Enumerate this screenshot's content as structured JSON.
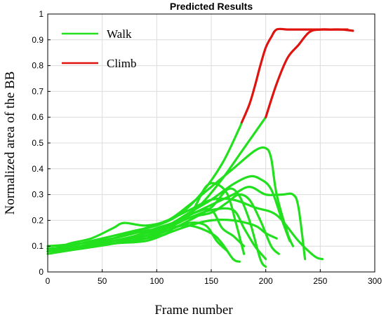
{
  "chart_data": {
    "type": "line",
    "title": "Predicted Results",
    "xlabel": "Frame number",
    "ylabel": "Normalized area of the BB",
    "xlim": [
      0,
      300
    ],
    "ylim": [
      0,
      1
    ],
    "xticks": [
      0,
      50,
      100,
      150,
      200,
      250,
      300
    ],
    "yticks": [
      0,
      0.1,
      0.2,
      0.3,
      0.4,
      0.5,
      0.6,
      0.7,
      0.8,
      0.9,
      1
    ],
    "grid": true,
    "legend_position": "top-left",
    "legend": [
      {
        "name": "Walk",
        "color": "#22e01e"
      },
      {
        "name": "Climb",
        "color": "#e0140f"
      }
    ],
    "series": [
      {
        "name": "Walk",
        "color": "#22e01e",
        "points": [
          [
            0,
            0.08
          ],
          [
            20,
            0.1
          ],
          [
            40,
            0.12
          ],
          [
            60,
            0.14
          ],
          [
            80,
            0.16
          ],
          [
            100,
            0.18
          ],
          [
            120,
            0.22
          ],
          [
            140,
            0.3
          ],
          [
            160,
            0.42
          ],
          [
            175,
            0.55
          ],
          [
            178,
            0.58
          ]
        ]
      },
      {
        "name": "Walk",
        "color": "#22e01e",
        "points": [
          [
            0,
            0.09
          ],
          [
            20,
            0.09
          ],
          [
            40,
            0.1
          ],
          [
            60,
            0.12
          ],
          [
            80,
            0.14
          ],
          [
            100,
            0.17
          ],
          [
            120,
            0.2
          ],
          [
            140,
            0.26
          ],
          [
            160,
            0.36
          ],
          [
            180,
            0.48
          ],
          [
            200,
            0.6
          ]
        ]
      },
      {
        "name": "Walk",
        "color": "#22e01e",
        "points": [
          [
            0,
            0.08
          ],
          [
            20,
            0.11
          ],
          [
            40,
            0.13
          ],
          [
            60,
            0.17
          ],
          [
            70,
            0.19
          ],
          [
            90,
            0.18
          ],
          [
            110,
            0.2
          ],
          [
            130,
            0.26
          ],
          [
            150,
            0.33
          ],
          [
            170,
            0.4
          ],
          [
            190,
            0.47
          ],
          [
            200,
            0.48
          ],
          [
            205,
            0.44
          ],
          [
            210,
            0.3
          ],
          [
            220,
            0.15
          ],
          [
            225,
            0.1
          ]
        ]
      },
      {
        "name": "Walk",
        "color": "#22e01e",
        "points": [
          [
            0,
            0.07
          ],
          [
            30,
            0.09
          ],
          [
            60,
            0.11
          ],
          [
            90,
            0.14
          ],
          [
            110,
            0.18
          ],
          [
            130,
            0.22
          ],
          [
            150,
            0.26
          ],
          [
            170,
            0.3
          ],
          [
            185,
            0.33
          ],
          [
            200,
            0.3
          ],
          [
            215,
            0.3
          ],
          [
            225,
            0.3
          ],
          [
            230,
            0.25
          ],
          [
            236,
            0.05
          ]
        ]
      },
      {
        "name": "Walk",
        "color": "#22e01e",
        "points": [
          [
            0,
            0.09
          ],
          [
            30,
            0.1
          ],
          [
            60,
            0.12
          ],
          [
            90,
            0.15
          ],
          [
            110,
            0.18
          ],
          [
            130,
            0.23
          ],
          [
            150,
            0.28
          ],
          [
            170,
            0.34
          ],
          [
            185,
            0.37
          ],
          [
            195,
            0.36
          ],
          [
            205,
            0.32
          ],
          [
            215,
            0.2
          ],
          [
            222,
            0.12
          ]
        ]
      },
      {
        "name": "Walk",
        "color": "#22e01e",
        "points": [
          [
            0,
            0.08
          ],
          [
            30,
            0.1
          ],
          [
            60,
            0.11
          ],
          [
            90,
            0.13
          ],
          [
            110,
            0.17
          ],
          [
            130,
            0.22
          ],
          [
            145,
            0.33
          ],
          [
            155,
            0.34
          ],
          [
            165,
            0.3
          ],
          [
            172,
            0.2
          ],
          [
            180,
            0.07
          ]
        ]
      },
      {
        "name": "Walk",
        "color": "#22e01e",
        "points": [
          [
            0,
            0.08
          ],
          [
            30,
            0.1
          ],
          [
            60,
            0.12
          ],
          [
            90,
            0.14
          ],
          [
            110,
            0.16
          ],
          [
            130,
            0.2
          ],
          [
            150,
            0.25
          ],
          [
            165,
            0.32
          ],
          [
            175,
            0.3
          ],
          [
            185,
            0.2
          ],
          [
            195,
            0.05
          ],
          [
            200,
            0.02
          ]
        ]
      },
      {
        "name": "Walk",
        "color": "#22e01e",
        "points": [
          [
            0,
            0.09
          ],
          [
            30,
            0.1
          ],
          [
            60,
            0.12
          ],
          [
            90,
            0.15
          ],
          [
            110,
            0.18
          ],
          [
            130,
            0.21
          ],
          [
            150,
            0.24
          ],
          [
            170,
            0.24
          ],
          [
            180,
            0.17
          ],
          [
            190,
            0.1
          ],
          [
            200,
            0.05
          ]
        ]
      },
      {
        "name": "Walk",
        "color": "#22e01e",
        "points": [
          [
            0,
            0.08
          ],
          [
            30,
            0.1
          ],
          [
            60,
            0.13
          ],
          [
            90,
            0.17
          ],
          [
            110,
            0.2
          ],
          [
            130,
            0.24
          ],
          [
            150,
            0.28
          ],
          [
            170,
            0.28
          ],
          [
            190,
            0.25
          ],
          [
            210,
            0.22
          ],
          [
            230,
            0.12
          ],
          [
            245,
            0.06
          ],
          [
            252,
            0.05
          ]
        ]
      },
      {
        "name": "Walk",
        "color": "#22e01e",
        "points": [
          [
            0,
            0.09
          ],
          [
            30,
            0.1
          ],
          [
            60,
            0.12
          ],
          [
            90,
            0.14
          ],
          [
            110,
            0.17
          ],
          [
            130,
            0.21
          ],
          [
            150,
            0.23
          ],
          [
            165,
            0.27
          ],
          [
            175,
            0.3
          ],
          [
            185,
            0.28
          ],
          [
            195,
            0.2
          ],
          [
            205,
            0.1
          ],
          [
            212,
            0.07
          ]
        ]
      },
      {
        "name": "Walk",
        "color": "#22e01e",
        "points": [
          [
            0,
            0.1
          ],
          [
            30,
            0.11
          ],
          [
            60,
            0.13
          ],
          [
            90,
            0.16
          ],
          [
            110,
            0.17
          ],
          [
            130,
            0.18
          ],
          [
            150,
            0.15
          ],
          [
            160,
            0.11
          ],
          [
            170,
            0.05
          ],
          [
            176,
            0.04
          ]
        ]
      },
      {
        "name": "Walk",
        "color": "#22e01e",
        "points": [
          [
            0,
            0.08
          ],
          [
            30,
            0.09
          ],
          [
            60,
            0.11
          ],
          [
            90,
            0.12
          ],
          [
            110,
            0.15
          ],
          [
            130,
            0.18
          ],
          [
            150,
            0.2
          ],
          [
            170,
            0.2
          ],
          [
            190,
            0.18
          ],
          [
            200,
            0.15
          ],
          [
            210,
            0.13
          ]
        ]
      },
      {
        "name": "Walk",
        "color": "#22e01e",
        "points": [
          [
            0,
            0.09
          ],
          [
            30,
            0.1
          ],
          [
            60,
            0.11
          ],
          [
            90,
            0.13
          ],
          [
            110,
            0.15
          ],
          [
            120,
            0.2
          ],
          [
            135,
            0.23
          ],
          [
            150,
            0.24
          ],
          [
            160,
            0.17
          ],
          [
            170,
            0.14
          ],
          [
            180,
            0.1
          ]
        ]
      },
      {
        "name": "Walk",
        "color": "#22e01e",
        "points": [
          [
            0,
            0.08
          ],
          [
            30,
            0.1
          ],
          [
            60,
            0.12
          ],
          [
            90,
            0.13
          ],
          [
            110,
            0.16
          ],
          [
            130,
            0.19
          ],
          [
            145,
            0.18
          ],
          [
            155,
            0.12
          ],
          [
            165,
            0.08
          ]
        ]
      },
      {
        "name": "Climb",
        "color": "#e0140f",
        "points": [
          [
            178,
            0.58
          ],
          [
            185,
            0.65
          ],
          [
            190,
            0.72
          ],
          [
            195,
            0.8
          ],
          [
            200,
            0.87
          ],
          [
            205,
            0.91
          ],
          [
            210,
            0.94
          ],
          [
            220,
            0.94
          ],
          [
            230,
            0.94
          ],
          [
            240,
            0.94
          ],
          [
            250,
            0.94
          ],
          [
            260,
            0.94
          ],
          [
            270,
            0.94
          ],
          [
            275,
            0.94
          ]
        ]
      },
      {
        "name": "Climb",
        "color": "#e0140f",
        "points": [
          [
            200,
            0.6
          ],
          [
            210,
            0.73
          ],
          [
            220,
            0.83
          ],
          [
            230,
            0.88
          ],
          [
            240,
            0.93
          ],
          [
            250,
            0.94
          ],
          [
            260,
            0.94
          ],
          [
            270,
            0.94
          ],
          [
            280,
            0.935
          ]
        ]
      }
    ]
  }
}
